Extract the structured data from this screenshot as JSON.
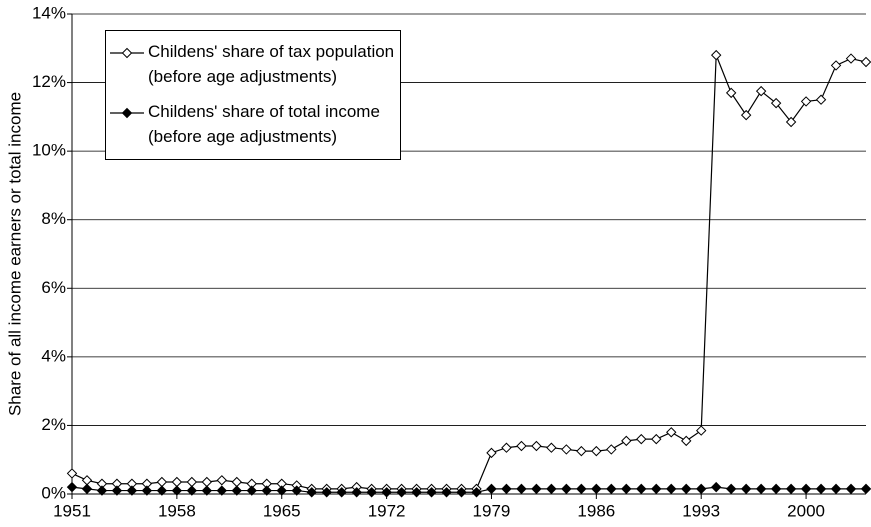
{
  "chart_data": {
    "type": "line",
    "ylabel": "Share of all income earners or total income",
    "xlim": [
      1951,
      2004
    ],
    "xticks": [
      1951,
      1958,
      1965,
      1972,
      1979,
      1986,
      1993,
      2000
    ],
    "ylim": [
      0,
      14
    ],
    "yticks": [
      {
        "value": 0,
        "label": "0%"
      },
      {
        "value": 2,
        "label": "2%"
      },
      {
        "value": 4,
        "label": "4%"
      },
      {
        "value": 6,
        "label": "6%"
      },
      {
        "value": 8,
        "label": "8%"
      },
      {
        "value": 10,
        "label": "10%"
      },
      {
        "value": 12,
        "label": "12%"
      },
      {
        "value": 14,
        "label": "14%"
      }
    ],
    "grid": true,
    "legend": "upper left",
    "x": [
      1951,
      1952,
      1953,
      1954,
      1955,
      1956,
      1957,
      1958,
      1959,
      1960,
      1961,
      1962,
      1963,
      1964,
      1965,
      1966,
      1967,
      1968,
      1969,
      1970,
      1971,
      1972,
      1973,
      1974,
      1975,
      1976,
      1977,
      1978,
      1979,
      1980,
      1981,
      1982,
      1983,
      1984,
      1985,
      1986,
      1987,
      1988,
      1989,
      1990,
      1991,
      1992,
      1993,
      1994,
      1995,
      1996,
      1997,
      1998,
      1999,
      2000,
      2001,
      2002,
      2003,
      2004
    ],
    "series": [
      {
        "name": "Childens' share of tax population (before age adjustments)",
        "color": "#000000",
        "filled": false,
        "values": [
          0.6,
          0.4,
          0.3,
          0.3,
          0.3,
          0.3,
          0.35,
          0.35,
          0.35,
          0.35,
          0.4,
          0.35,
          0.3,
          0.3,
          0.3,
          0.25,
          0.15,
          0.15,
          0.15,
          0.2,
          0.15,
          0.15,
          0.15,
          0.15,
          0.15,
          0.15,
          0.15,
          0.15,
          1.2,
          1.35,
          1.4,
          1.4,
          1.35,
          1.3,
          1.25,
          1.25,
          1.3,
          1.55,
          1.6,
          1.6,
          1.8,
          1.55,
          1.85,
          12.8,
          11.7,
          11.05,
          11.75,
          11.4,
          10.85,
          11.45,
          11.5,
          12.5,
          12.7,
          12.6
        ]
      },
      {
        "name": "Childens' share of total income (before age adjustments)",
        "color": "#000000",
        "filled": true,
        "values": [
          0.2,
          0.15,
          0.1,
          0.1,
          0.1,
          0.1,
          0.1,
          0.1,
          0.1,
          0.1,
          0.1,
          0.1,
          0.1,
          0.1,
          0.1,
          0.1,
          0.05,
          0.05,
          0.05,
          0.05,
          0.05,
          0.05,
          0.05,
          0.05,
          0.05,
          0.05,
          0.05,
          0.05,
          0.15,
          0.15,
          0.15,
          0.15,
          0.15,
          0.15,
          0.15,
          0.15,
          0.15,
          0.15,
          0.15,
          0.15,
          0.15,
          0.15,
          0.15,
          0.2,
          0.15,
          0.15,
          0.15,
          0.15,
          0.15,
          0.15,
          0.15,
          0.15,
          0.15,
          0.15
        ]
      }
    ]
  }
}
